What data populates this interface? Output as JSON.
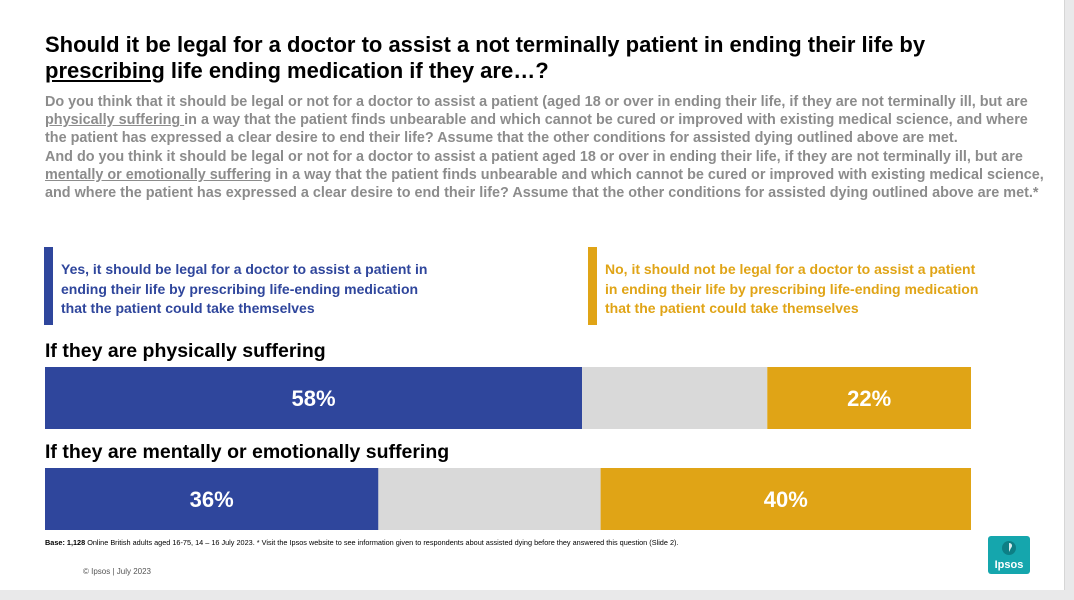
{
  "title_part1": "Should it be legal for a doctor to assist a not terminally patient in ending their life by ",
  "title_underlined": "prescribing",
  "title_part2": " life ending medication if they are…?",
  "question1": {
    "a": "Do you think that it should be legal or not for a doctor to assist a patient (aged 18 or over in ending their life, if they are not terminally ill, but are ",
    "u": "physically suffering ",
    "b": "in a way that the patient finds unbearable and which cannot be cured or improved with existing medical science, and where the patient has expressed a clear desire to end their life? Assume that the other conditions for assisted dying outlined above are met."
  },
  "question2": {
    "a": "And do you think it should be legal or not for a doctor to assist a patient aged 18 or over in ending their life, if they are not terminally ill, but are ",
    "u": "mentally or emotionally suffering",
    "b": " in a way that the patient finds unbearable and which cannot be cured or improved with existing medical science, and where the patient has expressed a clear desire to end their life? Assume that the other conditions for assisted dying outlined above are met.*"
  },
  "legend": {
    "yes": "Yes, it should be legal for a doctor to assist a patient in ending their life by prescribing life-ending medication that the patient could take themselves",
    "no": "No, it should not be legal for a doctor to assist a patient in ending their life by prescribing life-ending medication that the patient could take themselves"
  },
  "colors": {
    "yes": "#2f469c",
    "neither": "#d9d9d9",
    "no": "#e0a416"
  },
  "chart_data": {
    "type": "bar",
    "orientation": "horizontal-stacked",
    "categories": [
      "If they are physically suffering",
      "If they are mentally or emotionally suffering"
    ],
    "series": [
      {
        "key": "yes",
        "values": [
          58,
          36
        ],
        "labels": [
          "58%",
          "36%"
        ]
      },
      {
        "key": "neither",
        "values": [
          20,
          24
        ],
        "labels": [
          "",
          ""
        ]
      },
      {
        "key": "no",
        "values": [
          22,
          40
        ],
        "labels": [
          "22%",
          "40%"
        ]
      }
    ],
    "xlim": [
      0,
      100
    ]
  },
  "footer": {
    "base_label": "Base: 1,128",
    "base_text": " Online British adults aged 16-75, 14 – 16 July 2023. * Visit the Ipsos website to see information given to respondents about assisted dying before they answered this question (Slide 2).",
    "copyright": "© Ipsos | July 2023",
    "logo_text": "Ipsos"
  }
}
